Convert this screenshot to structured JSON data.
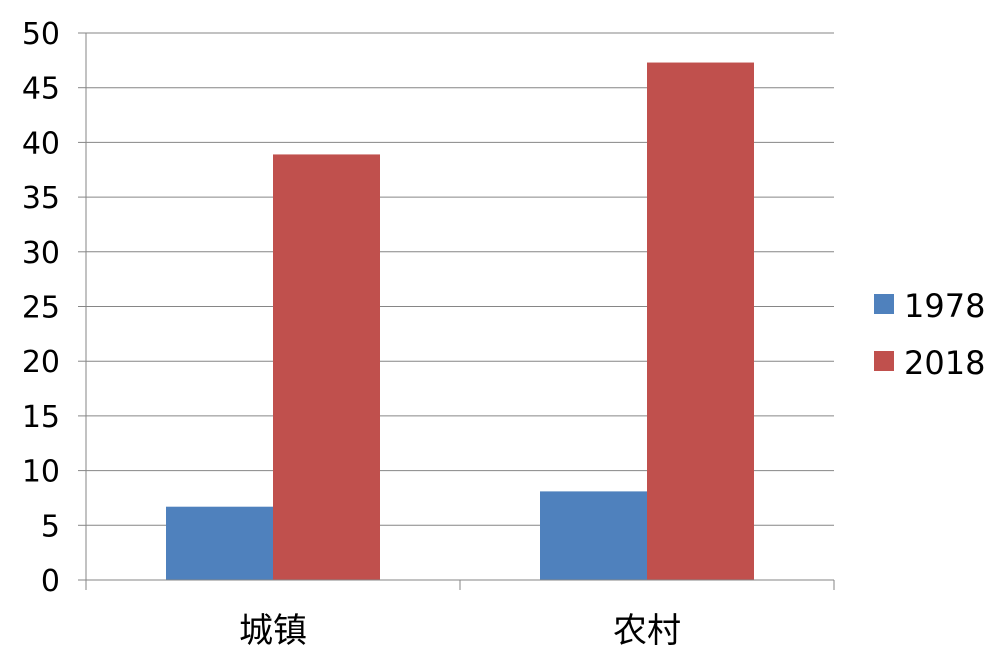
{
  "chart_data": {
    "type": "bar",
    "categories": [
      "城镇",
      "农村"
    ],
    "series": [
      {
        "name": "1978",
        "values": [
          6.7,
          8.1
        ],
        "color": "#4f81bd"
      },
      {
        "name": "2018",
        "values": [
          38.9,
          47.3
        ],
        "color": "#c0504d"
      }
    ],
    "ylim": [
      0,
      50
    ],
    "yticks": [
      0,
      5,
      10,
      15,
      20,
      25,
      30,
      35,
      40,
      45,
      50
    ],
    "grid": true,
    "legend_position": "right"
  }
}
